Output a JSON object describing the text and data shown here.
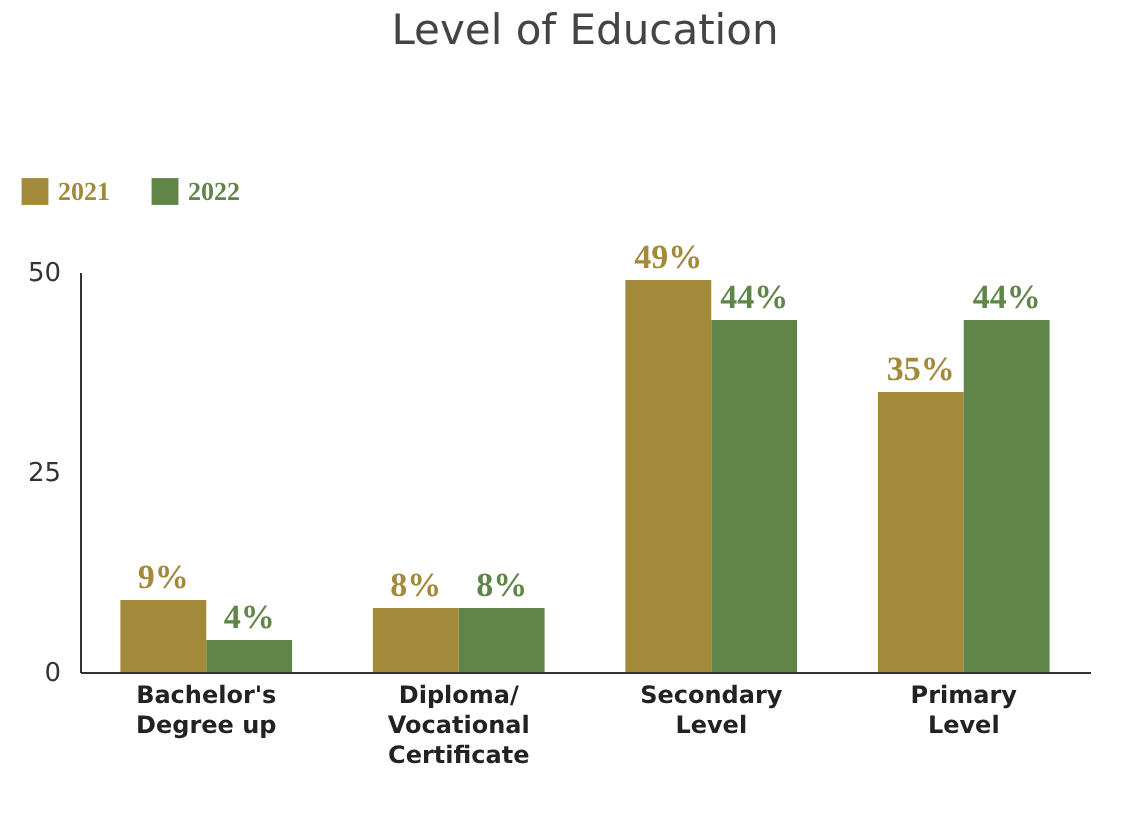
{
  "chart_data": {
    "type": "bar",
    "title": "Level of Education",
    "categories": [
      "Bachelor's\nDegree up",
      "Diploma/\nVocational\nCertificate",
      "Secondary\nLevel",
      "Primary\nLevel"
    ],
    "series": [
      {
        "name": "2021",
        "color": "#a3893a",
        "values": [
          9,
          8,
          49,
          35
        ],
        "value_labels": [
          "9%",
          "8%",
          "49%",
          "35%"
        ]
      },
      {
        "name": "2022",
        "color": "#5f8549",
        "values": [
          4,
          8,
          44,
          44
        ],
        "value_labels": [
          "4%",
          "8%",
          "44%",
          "44%"
        ]
      }
    ],
    "ylim": [
      0,
      50
    ],
    "yticks": [
      0,
      25,
      50
    ],
    "grid": false,
    "legend": "top left"
  }
}
